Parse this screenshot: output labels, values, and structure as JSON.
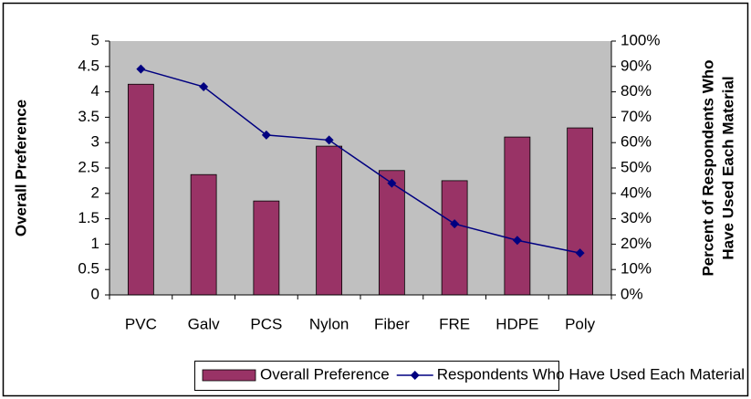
{
  "chart_data": {
    "type": "bar-line",
    "y_label": "Overall Preference",
    "y2_label": [
      "Percent of Respondents Who",
      "Have Used Each Material"
    ],
    "categories": [
      "PVC",
      "Galv",
      "PCS",
      "Nylon",
      "Fiber",
      "FRE",
      "HDPE",
      "Poly"
    ],
    "series": [
      {
        "name": "Overall Preference",
        "type": "bar",
        "color": "#993366",
        "values": [
          4.15,
          2.37,
          1.85,
          2.93,
          2.45,
          2.25,
          3.11,
          3.29
        ]
      },
      {
        "name": "Respondents Who Have Used Each Material",
        "type": "line",
        "axis": "y2",
        "color": "#000080",
        "values": [
          89,
          82,
          63,
          61,
          44,
          28,
          21.5,
          16.5
        ]
      }
    ],
    "ylim": [
      0,
      5
    ],
    "yticks": [
      0,
      0.5,
      1,
      1.5,
      2,
      2.5,
      3,
      3.5,
      4,
      4.5,
      5
    ],
    "y2lim": [
      0,
      100
    ],
    "y2ticks": [
      {
        "value": 0,
        "label": "0%"
      },
      {
        "value": 10,
        "label": "10%"
      },
      {
        "value": 20,
        "label": "20%"
      },
      {
        "value": 30,
        "label": "30%"
      },
      {
        "value": 40,
        "label": "40%"
      },
      {
        "value": 50,
        "label": "50%"
      },
      {
        "value": 60,
        "label": "60%"
      },
      {
        "value": 70,
        "label": "70%"
      },
      {
        "value": 80,
        "label": "80%"
      },
      {
        "value": 90,
        "label": "90%"
      },
      {
        "value": 100,
        "label": "100%"
      }
    ],
    "plot_background": "#c0c0c0",
    "legend": "bottom"
  }
}
